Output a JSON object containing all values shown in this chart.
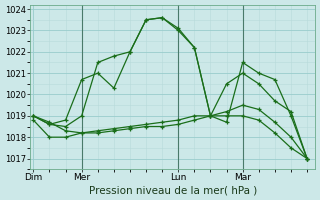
{
  "bg_color": "#cce8e8",
  "grid_color": "#99cccc",
  "line_color": "#1a6e1a",
  "marker": "+",
  "markersize": 3.5,
  "linewidth": 0.9,
  "xlabel": "Pression niveau de la mer( hPa )",
  "xlabel_fontsize": 7.5,
  "ylim": [
    1016.5,
    1024.2
  ],
  "yticks": [
    1017,
    1018,
    1019,
    1020,
    1021,
    1022,
    1023,
    1024
  ],
  "ytick_fontsize": 6,
  "xtick_fontsize": 6.5,
  "day_labels": [
    "Dim",
    "Mer",
    "Lun",
    "Mar"
  ],
  "day_positions": [
    0,
    3,
    9,
    13
  ],
  "vline_positions": [
    3,
    9,
    13
  ],
  "xlim": [
    -0.2,
    17.5
  ],
  "lines": [
    {
      "x": [
        0,
        1,
        2,
        3,
        4,
        5,
        6,
        7,
        8,
        9,
        10,
        11,
        12,
        13,
        14,
        15,
        16,
        17
      ],
      "y": [
        1019.0,
        1018.6,
        1018.8,
        1020.7,
        1021.0,
        1020.3,
        1022.0,
        1023.5,
        1023.6,
        1023.0,
        1022.2,
        1019.0,
        1020.5,
        1021.0,
        1020.5,
        1019.7,
        1019.2,
        1017.0
      ]
    },
    {
      "x": [
        0,
        1,
        2,
        3,
        4,
        5,
        6,
        7,
        8,
        9,
        10,
        11,
        12,
        13,
        14,
        15,
        16,
        17
      ],
      "y": [
        1019.0,
        1018.6,
        1018.5,
        1019.0,
        1021.5,
        1021.8,
        1022.0,
        1023.5,
        1023.6,
        1023.1,
        1022.2,
        1019.0,
        1018.7,
        1021.5,
        1021.0,
        1020.7,
        1019.0,
        1017.0
      ]
    },
    {
      "x": [
        0,
        1,
        2,
        3,
        4,
        5,
        6,
        7,
        8,
        9,
        10,
        11,
        12,
        13,
        14,
        15,
        16,
        17
      ],
      "y": [
        1019.0,
        1018.7,
        1018.3,
        1018.2,
        1018.2,
        1018.3,
        1018.4,
        1018.5,
        1018.5,
        1018.6,
        1018.8,
        1019.0,
        1019.2,
        1019.5,
        1019.3,
        1018.7,
        1018.0,
        1017.0
      ]
    },
    {
      "x": [
        0,
        1,
        2,
        3,
        4,
        5,
        6,
        7,
        8,
        9,
        10,
        11,
        12,
        13,
        14,
        15,
        16,
        17
      ],
      "y": [
        1018.8,
        1018.0,
        1018.0,
        1018.2,
        1018.3,
        1018.4,
        1018.5,
        1018.6,
        1018.7,
        1018.8,
        1019.0,
        1019.0,
        1019.0,
        1019.0,
        1018.8,
        1018.2,
        1017.5,
        1017.0
      ]
    }
  ],
  "n_minor_x": 4,
  "minor_grid_color": "#b8dada"
}
